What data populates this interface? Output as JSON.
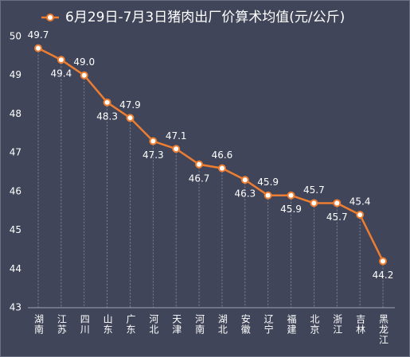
{
  "chart_data": {
    "type": "line",
    "categories": [
      "湖南",
      "江苏",
      "四川",
      "山东",
      "广东",
      "河北",
      "天津",
      "河南",
      "湖北",
      "安徽",
      "辽宁",
      "福建",
      "北京",
      "浙江",
      "吉林",
      "黑龙江"
    ],
    "series": [
      {
        "name": "6月29日-7月3日猪肉出厂价算术均值(元/公斤)",
        "color": "#ed7d31",
        "values": [
          49.7,
          49.4,
          49.0,
          48.3,
          47.9,
          47.3,
          47.1,
          46.7,
          46.6,
          46.3,
          45.9,
          45.9,
          45.7,
          45.7,
          45.4,
          44.2
        ],
        "value_labels": [
          "49.7",
          "49.4",
          "49.0",
          "48.3",
          "47.9",
          "47.3",
          "47.1",
          "46.7",
          "46.6",
          "46.3",
          "45.9",
          "45.9",
          "45.7",
          "45.7",
          "45.4",
          "44.2"
        ]
      }
    ],
    "ylim": [
      43,
      50
    ],
    "yticks": [
      43,
      44,
      45,
      46,
      47,
      48,
      49,
      50
    ],
    "legend": "top"
  }
}
